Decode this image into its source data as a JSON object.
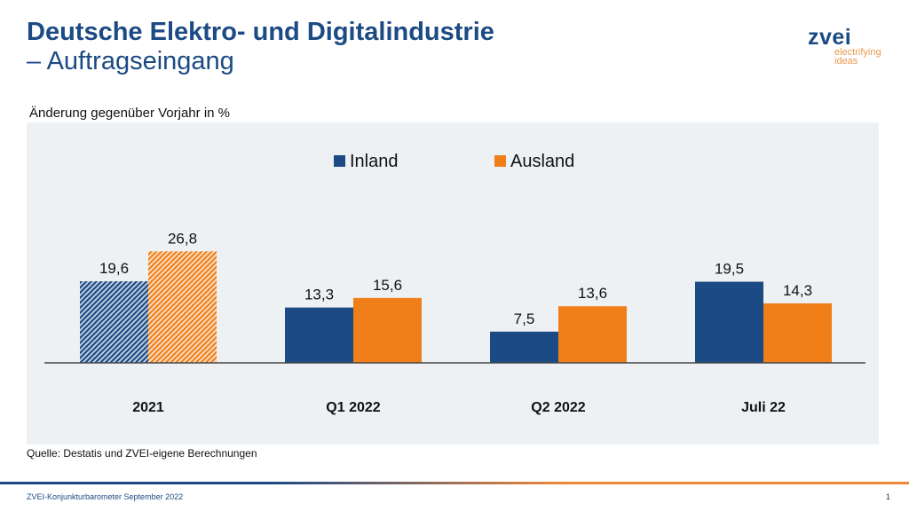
{
  "header": {
    "title_line1": "Deutsche Elektro- und Digitalindustrie",
    "title_line2": "– Auftragseingang",
    "logo_text": "zvei",
    "logo_tagline_1": "electrifying",
    "logo_tagline_2": "ideas"
  },
  "chart_data": {
    "type": "bar",
    "title": "",
    "subtitle": "Änderung gegenüber Vorjahr in %",
    "categories": [
      "2021",
      "Q1 2022",
      "Q2 2022",
      "Juli 22"
    ],
    "series": [
      {
        "name": "Inland",
        "color": "#1b4a84",
        "values": [
          19.6,
          13.3,
          7.5,
          19.5
        ],
        "labels": [
          "19,6",
          "13,3",
          "7,5",
          "19,5"
        ]
      },
      {
        "name": "Ausland",
        "color": "#f07f1a",
        "values": [
          26.8,
          15.6,
          13.6,
          14.3
        ],
        "labels": [
          "26,8",
          "15,6",
          "13,6",
          "14,3"
        ]
      }
    ],
    "hatched_categories": [
      "2021"
    ],
    "legend": "top-center",
    "grid": false,
    "ylim": [
      0,
      30
    ],
    "background": "#eef1f3"
  },
  "footer": {
    "source": "Quelle: Destatis und ZVEI-eigene Berechnungen",
    "left": "ZVEI-Konjunkturbarometer September 2022",
    "page": "1"
  }
}
